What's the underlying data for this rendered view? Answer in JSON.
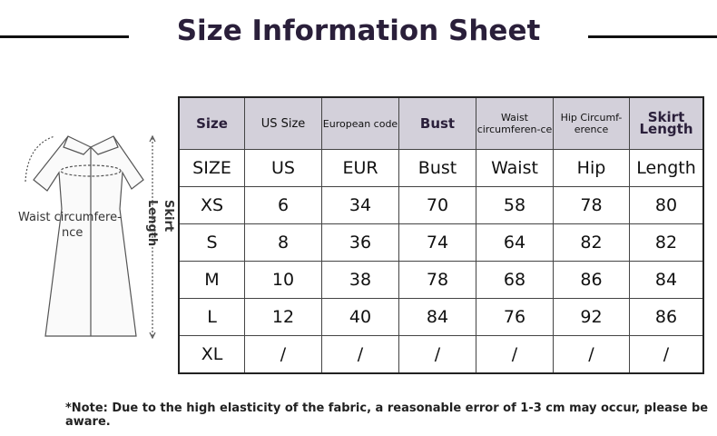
{
  "header": {
    "title": "Size Information Sheet"
  },
  "figure": {
    "waist_label": [
      "Waist circumfere-",
      "nce"
    ],
    "length_label": [
      "Skirt",
      "Length"
    ]
  },
  "table": {
    "columns": [
      "Size",
      "US Size",
      "European code",
      "Bust",
      "Waist circumferen-ce",
      "Hip Circumf-erence",
      "Skirt Length"
    ],
    "rows": [
      [
        "SIZE",
        "US",
        "EUR",
        "Bust",
        "Waist",
        "Hip",
        "Length"
      ],
      [
        "XS",
        "6",
        "34",
        "70",
        "58",
        "78",
        "80"
      ],
      [
        "S",
        "8",
        "36",
        "74",
        "64",
        "82",
        "82"
      ],
      [
        "M",
        "10",
        "38",
        "78",
        "68",
        "86",
        "84"
      ],
      [
        "L",
        "12",
        "40",
        "84",
        "76",
        "92",
        "86"
      ],
      [
        "XL",
        "/",
        "/",
        "/",
        "/",
        "/",
        "/"
      ]
    ]
  },
  "note": "*Note: Due to the high elasticity of the fabric, a reasonable error of 1-3 cm may occur, please be aware."
}
